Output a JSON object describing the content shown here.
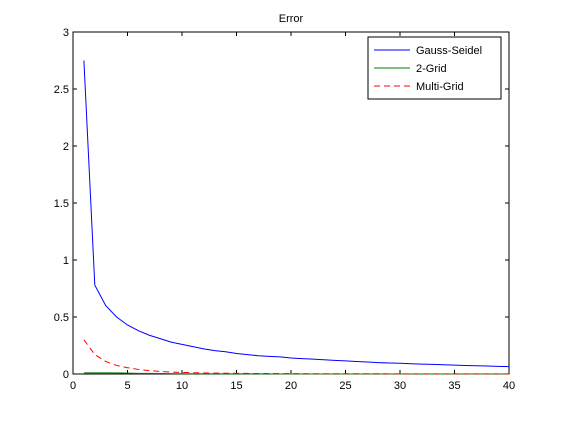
{
  "chart_data": {
    "type": "line",
    "title": "Error",
    "xlabel": "",
    "ylabel": "",
    "xlim": [
      0,
      40
    ],
    "ylim": [
      0,
      3
    ],
    "xticks": [
      0,
      5,
      10,
      15,
      20,
      25,
      30,
      35,
      40
    ],
    "yticks": [
      0,
      0.5,
      1,
      1.5,
      2,
      2.5,
      3
    ],
    "xtick_labels": [
      "0",
      "5",
      "10",
      "15",
      "20",
      "25",
      "30",
      "35",
      "40"
    ],
    "ytick_labels": [
      "0",
      "0.5",
      "1",
      "1.5",
      "2",
      "2.5",
      "3"
    ],
    "grid": false,
    "legend_position": "top-right",
    "series": [
      {
        "name": "Gauss-Seidel",
        "color": "#0000ff",
        "dash": "solid",
        "x": [
          1,
          2,
          3,
          4,
          5,
          6,
          7,
          8,
          9,
          10,
          11,
          12,
          13,
          14,
          15,
          16,
          17,
          18,
          19,
          20,
          21,
          22,
          23,
          24,
          25,
          26,
          27,
          28,
          29,
          30,
          31,
          32,
          33,
          34,
          35,
          36,
          37,
          38,
          39,
          40
        ],
        "values": [
          2.75,
          0.78,
          0.6,
          0.5,
          0.43,
          0.38,
          0.34,
          0.31,
          0.28,
          0.26,
          0.24,
          0.22,
          0.205,
          0.195,
          0.18,
          0.17,
          0.16,
          0.155,
          0.15,
          0.14,
          0.135,
          0.13,
          0.125,
          0.12,
          0.115,
          0.11,
          0.105,
          0.1,
          0.097,
          0.094,
          0.09,
          0.087,
          0.084,
          0.081,
          0.078,
          0.075,
          0.072,
          0.07,
          0.067,
          0.065
        ]
      },
      {
        "name": "2-Grid",
        "color": "#008000",
        "dash": "solid",
        "x": [
          1,
          2,
          3,
          4,
          5,
          6,
          7,
          8,
          9,
          10,
          15,
          20,
          25,
          30,
          35,
          40
        ],
        "values": [
          0.01,
          0.01,
          0.01,
          0.01,
          0.008,
          0.006,
          0.005,
          0.004,
          0.003,
          0.002,
          0.001,
          0.0005,
          0.0003,
          0.0002,
          0.0001,
          0.0001
        ]
      },
      {
        "name": "Multi-Grid",
        "color": "#ff0000",
        "dash": "dashed",
        "x": [
          1,
          2,
          3,
          4,
          5,
          6,
          7,
          8,
          9,
          10,
          12,
          14,
          16,
          18,
          20,
          25,
          30,
          35,
          40
        ],
        "values": [
          0.3,
          0.17,
          0.11,
          0.075,
          0.055,
          0.04,
          0.03,
          0.022,
          0.017,
          0.013,
          0.009,
          0.007,
          0.005,
          0.004,
          0.003,
          0.002,
          0.0015,
          0.001,
          0.001
        ]
      }
    ]
  }
}
